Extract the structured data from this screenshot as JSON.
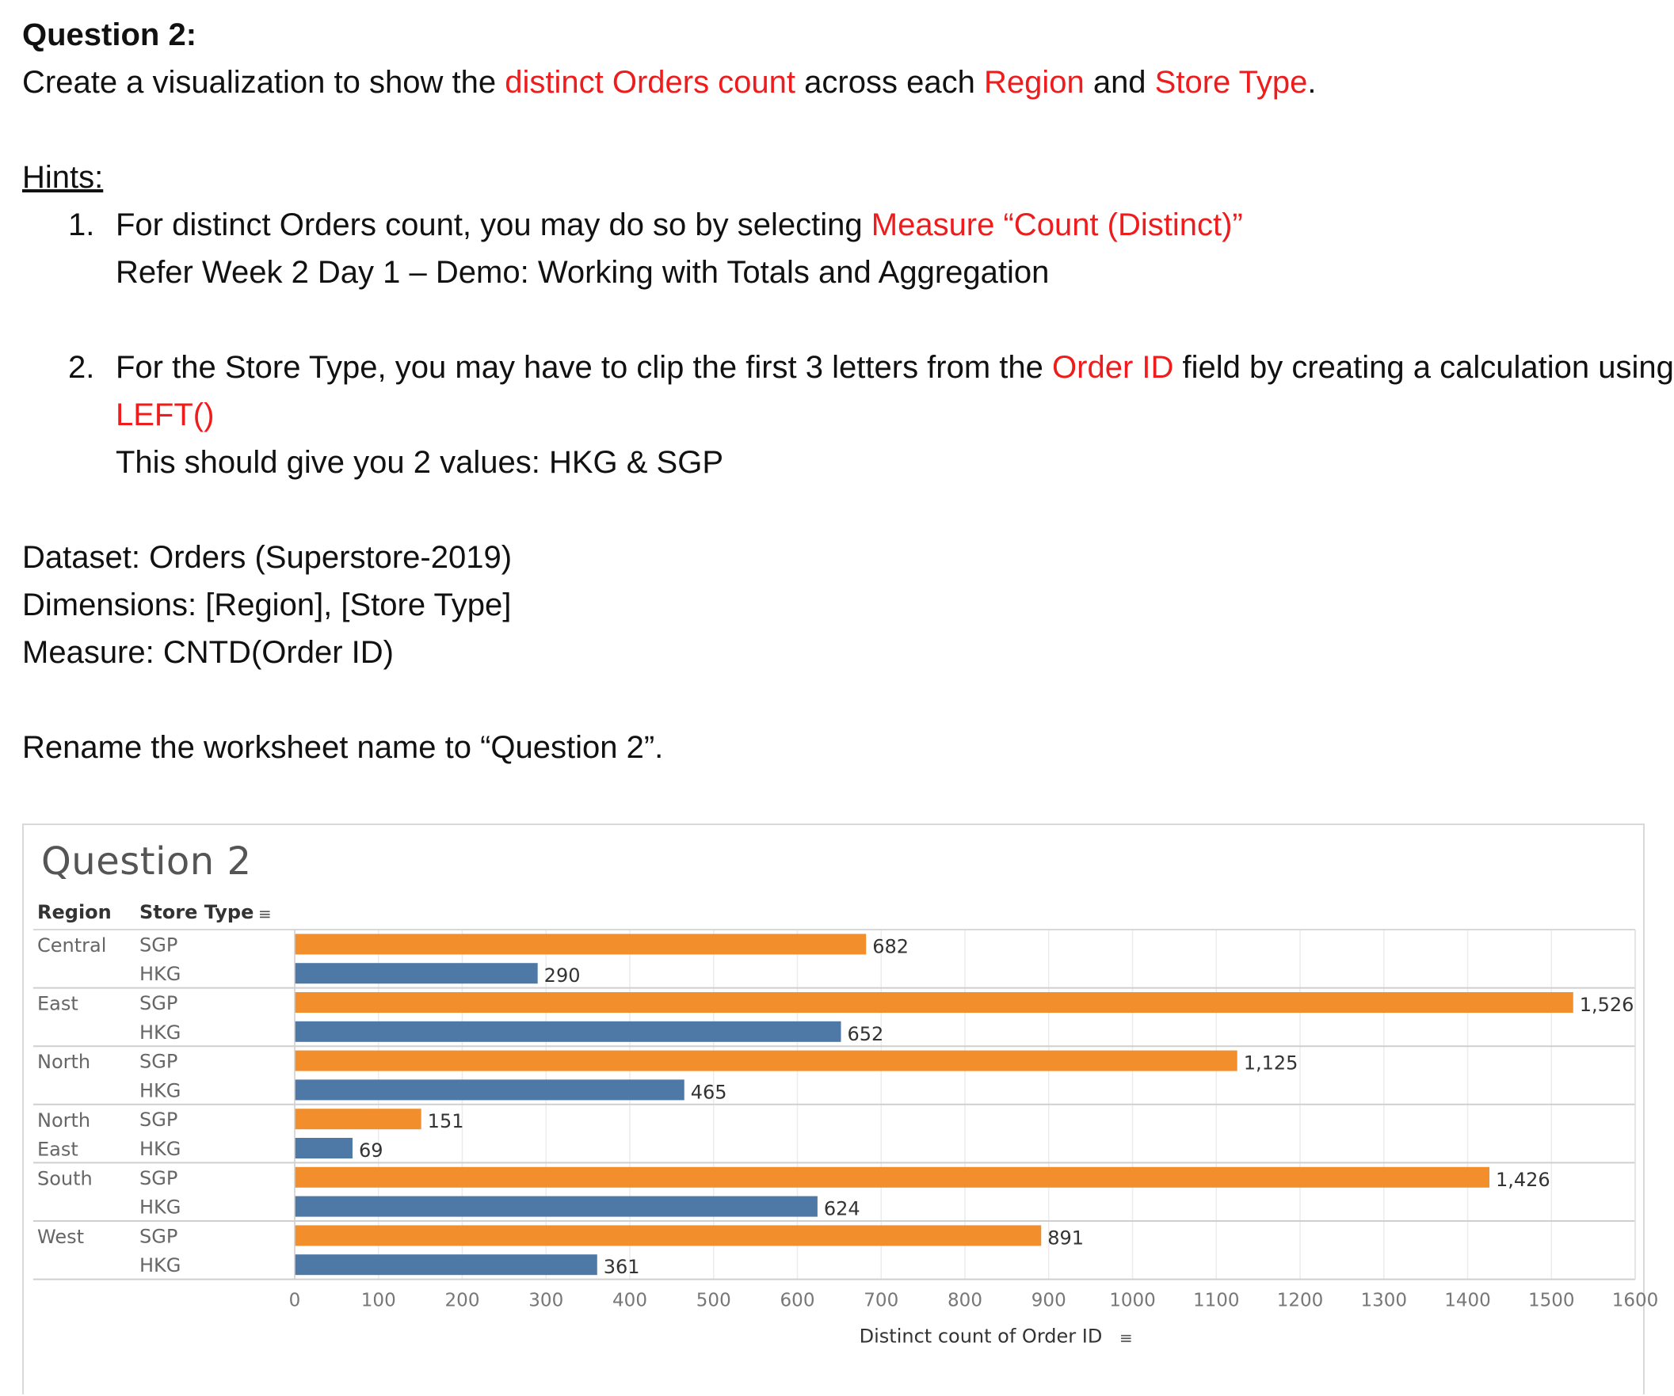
{
  "question": {
    "title": "Question 2:",
    "line_parts": [
      {
        "text": "Create a visualization to show the ",
        "red": false
      },
      {
        "text": "distinct Orders count",
        "red": true
      },
      {
        "text": " across each ",
        "red": false
      },
      {
        "text": "Region",
        "red": true
      },
      {
        "text": " and ",
        "red": false
      },
      {
        "text": "Store Type",
        "red": true
      },
      {
        "text": ".",
        "red": false
      }
    ]
  },
  "hints": {
    "heading": "Hints:",
    "items": [
      {
        "number": "1.",
        "lines": [
          [
            {
              "text": "For distinct Orders count, you may do so by selecting ",
              "red": false
            },
            {
              "text": "Measure “Count (Distinct)”",
              "red": true
            }
          ],
          [
            {
              "text": "Refer Week 2 Day 1 – Demo: Working with Totals and Aggregation",
              "red": false
            }
          ]
        ]
      },
      {
        "number": "2.",
        "lines": [
          [
            {
              "text": "For the Store Type, you may have to clip the first 3 letters from the ",
              "red": false
            },
            {
              "text": "Order ID",
              "red": true
            },
            {
              "text": " field by creating a calculation using",
              "red": false
            }
          ],
          [
            {
              "text": "LEFT()",
              "red": true
            }
          ],
          [
            {
              "text": "This should give you 2 values: HKG & SGP",
              "red": false
            }
          ]
        ]
      }
    ]
  },
  "spec": {
    "dataset": "Dataset: Orders (Superstore-2019)",
    "dimensions": "Dimensions: [Region], [Store Type]",
    "measure": "Measure: CNTD(Order ID)",
    "rename": "Rename the worksheet name to “Question 2”."
  },
  "worksheet": {
    "title": "Question 2",
    "header_region": "Region",
    "header_store_type": "Store Type",
    "colors": {
      "SGP": "#f28e2b",
      "HKG": "#4e79a7"
    }
  },
  "chart_data": {
    "type": "bar",
    "orientation": "horizontal",
    "title": "Question 2",
    "xlabel": "Distinct count of Order ID",
    "xlim": [
      0,
      1600
    ],
    "xticks": [
      0,
      100,
      200,
      300,
      400,
      500,
      600,
      700,
      800,
      900,
      1000,
      1100,
      1200,
      1300,
      1400,
      1500,
      1600
    ],
    "grid": true,
    "groups": [
      {
        "region": "Central",
        "bars": [
          {
            "store_type": "SGP",
            "value": 682,
            "label": "682"
          },
          {
            "store_type": "HKG",
            "value": 290,
            "label": "290"
          }
        ]
      },
      {
        "region": "East",
        "bars": [
          {
            "store_type": "SGP",
            "value": 1526,
            "label": "1,526"
          },
          {
            "store_type": "HKG",
            "value": 652,
            "label": "652"
          }
        ]
      },
      {
        "region": "North",
        "bars": [
          {
            "store_type": "SGP",
            "value": 1125,
            "label": "1,125"
          },
          {
            "store_type": "HKG",
            "value": 465,
            "label": "465"
          }
        ]
      },
      {
        "region": "North East",
        "bars": [
          {
            "store_type": "SGP",
            "value": 151,
            "label": "151"
          },
          {
            "store_type": "HKG",
            "value": 69,
            "label": "69"
          }
        ]
      },
      {
        "region": "South",
        "bars": [
          {
            "store_type": "SGP",
            "value": 1426,
            "label": "1,426"
          },
          {
            "store_type": "HKG",
            "value": 624,
            "label": "624"
          }
        ]
      },
      {
        "region": "West",
        "bars": [
          {
            "store_type": "SGP",
            "value": 891,
            "label": "891"
          },
          {
            "store_type": "HKG",
            "value": 361,
            "label": "361"
          }
        ]
      }
    ]
  }
}
